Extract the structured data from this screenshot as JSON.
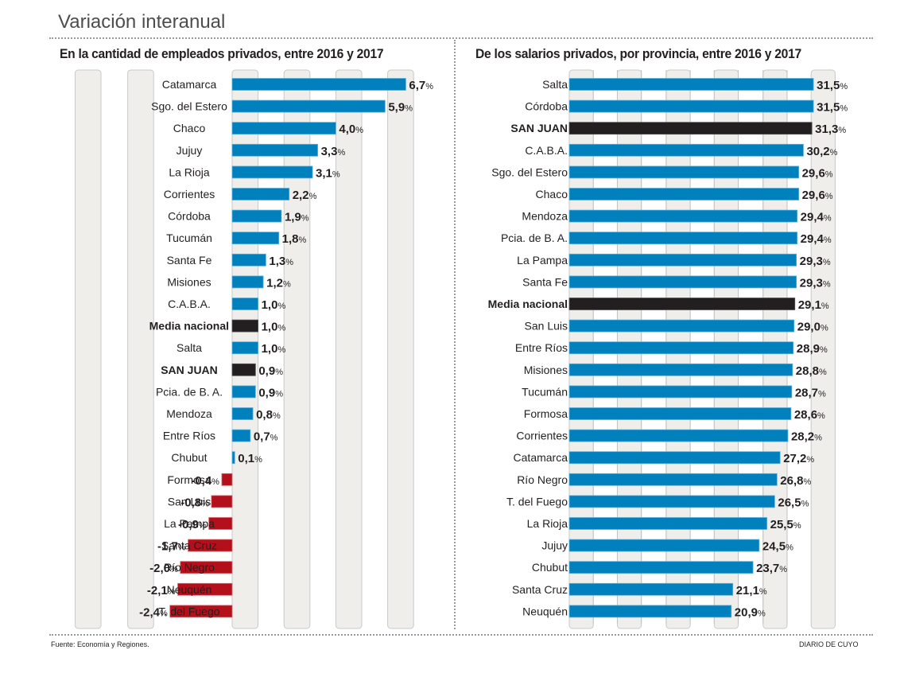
{
  "header": {
    "title": "Variación interanual"
  },
  "footer": {
    "source": "Fuente: Economía y Regiones.",
    "brand": "DIARIO DE CUYO"
  },
  "colors": {
    "positive": "#0080bd",
    "negative": "#b3101b",
    "highlight": "#231f20",
    "band": "#efeeea",
    "band_border": "#c9c9c9"
  },
  "chart_data": [
    {
      "type": "bar",
      "orientation": "horizontal",
      "title": "En la cantidad de empleados privados, entre 2016 y 2017",
      "xlabel": "",
      "ylabel": "",
      "unit": "%",
      "xlim": [
        -3,
        7
      ],
      "grid": "alternating-bands",
      "categories": [
        "Catamarca",
        "Sgo. del Estero",
        "Chaco",
        "Jujuy",
        "La Rioja",
        "Corrientes",
        "Córdoba",
        "Tucumán",
        "Santa Fe",
        "Misiones",
        "C.A.B.A.",
        "Media nacional",
        "Salta",
        "SAN JUAN",
        "Pcia. de B. A.",
        "Mendoza",
        "Entre Ríos",
        "Chubut",
        "Formosa",
        "San Luis",
        "La Pampa",
        "Santa Cruz",
        "Río Negro",
        "Neuquén",
        "T. del Fuego"
      ],
      "values": [
        6.7,
        5.9,
        4.0,
        3.3,
        3.1,
        2.2,
        1.9,
        1.8,
        1.3,
        1.2,
        1.0,
        1.0,
        1.0,
        0.9,
        0.9,
        0.8,
        0.7,
        0.1,
        -0.4,
        -0.8,
        -0.9,
        -1.7,
        -2.0,
        -2.1,
        -2.4
      ],
      "labels": [
        "6,7",
        "5,9",
        "4,0",
        "3,3",
        "3,1",
        "2,2",
        "1,9",
        "1,8",
        "1,3",
        "1,2",
        "1,0",
        "1,0",
        "1,0",
        "0,9",
        "0,9",
        "0,8",
        "0,7",
        "0,1",
        "-0,4",
        "-0,8",
        "-0,9",
        "-1,7",
        "-2,0",
        "-2,1",
        "-2,4"
      ],
      "highlighted": [
        "Media nacional",
        "SAN JUAN"
      ]
    },
    {
      "type": "bar",
      "orientation": "horizontal",
      "title": "De los salarios privados, por provincia, entre 2016 y 2017",
      "xlabel": "",
      "ylabel": "",
      "unit": "%",
      "xlim": [
        0,
        35
      ],
      "grid": "alternating-bands",
      "categories": [
        "Salta",
        "Córdoba",
        "SAN JUAN",
        "C.A.B.A.",
        "Sgo. del Estero",
        "Chaco",
        "Mendoza",
        "Pcia. de B. A.",
        "La Pampa",
        "Santa Fe",
        "Media nacional",
        "San Luis",
        "Entre Ríos",
        "Misiones",
        "Tucumán",
        "Formosa",
        "Corrientes",
        "Catamarca",
        "Río Negro",
        "T. del Fuego",
        "La Rioja",
        "Jujuy",
        "Chubut",
        "Santa Cruz",
        "Neuquén"
      ],
      "values": [
        31.5,
        31.5,
        31.3,
        30.2,
        29.6,
        29.6,
        29.4,
        29.4,
        29.3,
        29.3,
        29.1,
        29.0,
        28.9,
        28.8,
        28.7,
        28.6,
        28.2,
        27.2,
        26.8,
        26.5,
        25.5,
        24.5,
        23.7,
        21.1,
        20.9
      ],
      "labels": [
        "31,5",
        "31,5",
        "31,3",
        "30,2",
        "29,6",
        "29,6",
        "29,4",
        "29,4",
        "29,3",
        "29,3",
        "29,1",
        "29,0",
        "28,9",
        "28,8",
        "28,7",
        "28,6",
        "28,2",
        "27,2",
        "26,8",
        "26,5",
        "25,5",
        "24,5",
        "23,7",
        "21,1",
        "20,9"
      ],
      "highlighted": [
        "Media nacional",
        "SAN JUAN"
      ]
    }
  ]
}
